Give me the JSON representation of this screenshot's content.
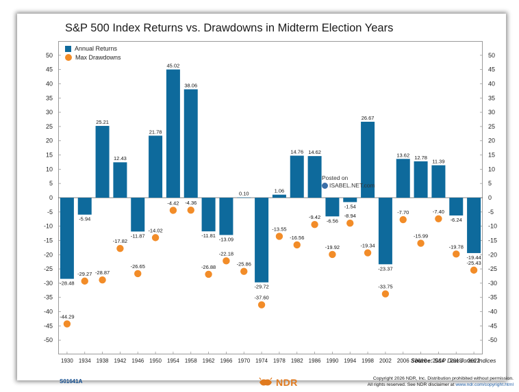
{
  "title": "S&P 500 Index Returns vs. Drawdowns in Midterm Election Years",
  "legend": {
    "returns_label": "Annual Returns",
    "drawdowns_label": "Max Drawdowns"
  },
  "source": {
    "label": "Source:",
    "text": "S&P Dow Jones Indices"
  },
  "watermark": {
    "line1": "Posted on",
    "line2": "ISABEL.NET.com"
  },
  "footer": {
    "doc_id": "S01641A",
    "logo_text": "NDR",
    "copyright_line1": "Copyright 2026 NDR, Inc. Distribution prohibited without permission.",
    "copyright_line2": "All rights reserved. See NDR disclaimer at",
    "copyright_link": "www.ndr.com/copyright.html"
  },
  "colors": {
    "bar": "#0e6a9c",
    "dot": "#f28c28",
    "axis": "#9a9a9a",
    "text": "#222222"
  },
  "chart_data": {
    "type": "bar",
    "title": "S&P 500 Index Returns vs. Drawdowns in Midterm Election Years",
    "categories": [
      "1930",
      "1934",
      "1938",
      "1942",
      "1946",
      "1950",
      "1954",
      "1958",
      "1962",
      "1966",
      "1970",
      "1974",
      "1978",
      "1982",
      "1986",
      "1990",
      "1994",
      "1998",
      "2002",
      "2006",
      "2010",
      "2014",
      "2018",
      "2022"
    ],
    "series": [
      {
        "name": "Annual Returns",
        "type": "bar",
        "values": [
          -28.48,
          -5.94,
          25.21,
          12.43,
          -11.87,
          21.78,
          45.02,
          38.06,
          -11.81,
          -13.09,
          0.1,
          -29.72,
          1.06,
          14.76,
          14.62,
          -6.56,
          -1.54,
          26.67,
          -23.37,
          13.62,
          12.78,
          11.39,
          -6.24,
          -19.44
        ],
        "labels": [
          "-28.48",
          "-5.94",
          "25.21",
          "12.43",
          "-11.87",
          "21.78",
          "45.02",
          "38.06",
          "-11.81",
          "-13.09",
          "0.10",
          "-29.72",
          "1.06",
          "14.76",
          "14.62",
          "-6.56",
          "-1.54",
          "26.67",
          "-23.37",
          "13.62",
          "12.78",
          "11.39",
          "-6.24",
          "-19.44"
        ]
      },
      {
        "name": "Max Drawdowns",
        "type": "scatter",
        "values": [
          -44.29,
          -29.27,
          -28.87,
          -17.82,
          -26.65,
          -14.02,
          -4.42,
          -4.36,
          -26.88,
          -22.18,
          -25.86,
          -37.6,
          -13.55,
          -16.56,
          -9.42,
          -19.92,
          -8.94,
          -19.34,
          -33.75,
          -7.7,
          -15.99,
          -7.4,
          -19.78,
          -25.43
        ],
        "labels": [
          "-44.29",
          "-29.27",
          "-28.87",
          "-17.82",
          "-26.65",
          "-14.02",
          "-4.42",
          "-4.36",
          "-26.88",
          "-22.18",
          "-25.86",
          "-37.60",
          "-13.55",
          "-16.56",
          "-9.42",
          "-19.92",
          "-8.94",
          "-19.34",
          "-33.75",
          "-7.70",
          "-15.99",
          "-7.40",
          "-19.78",
          "-25.43"
        ]
      }
    ],
    "ylim": [
      -55,
      55
    ],
    "yticks": [
      "50",
      "45",
      "40",
      "35",
      "30",
      "25",
      "20",
      "15",
      "10",
      "5",
      "0",
      "-5",
      "-10",
      "-15",
      "-20",
      "-25",
      "-30",
      "-35",
      "-40",
      "-45",
      "-50"
    ],
    "xlabel": "",
    "ylabel": "",
    "grid": false,
    "legend_position": "top-left"
  }
}
